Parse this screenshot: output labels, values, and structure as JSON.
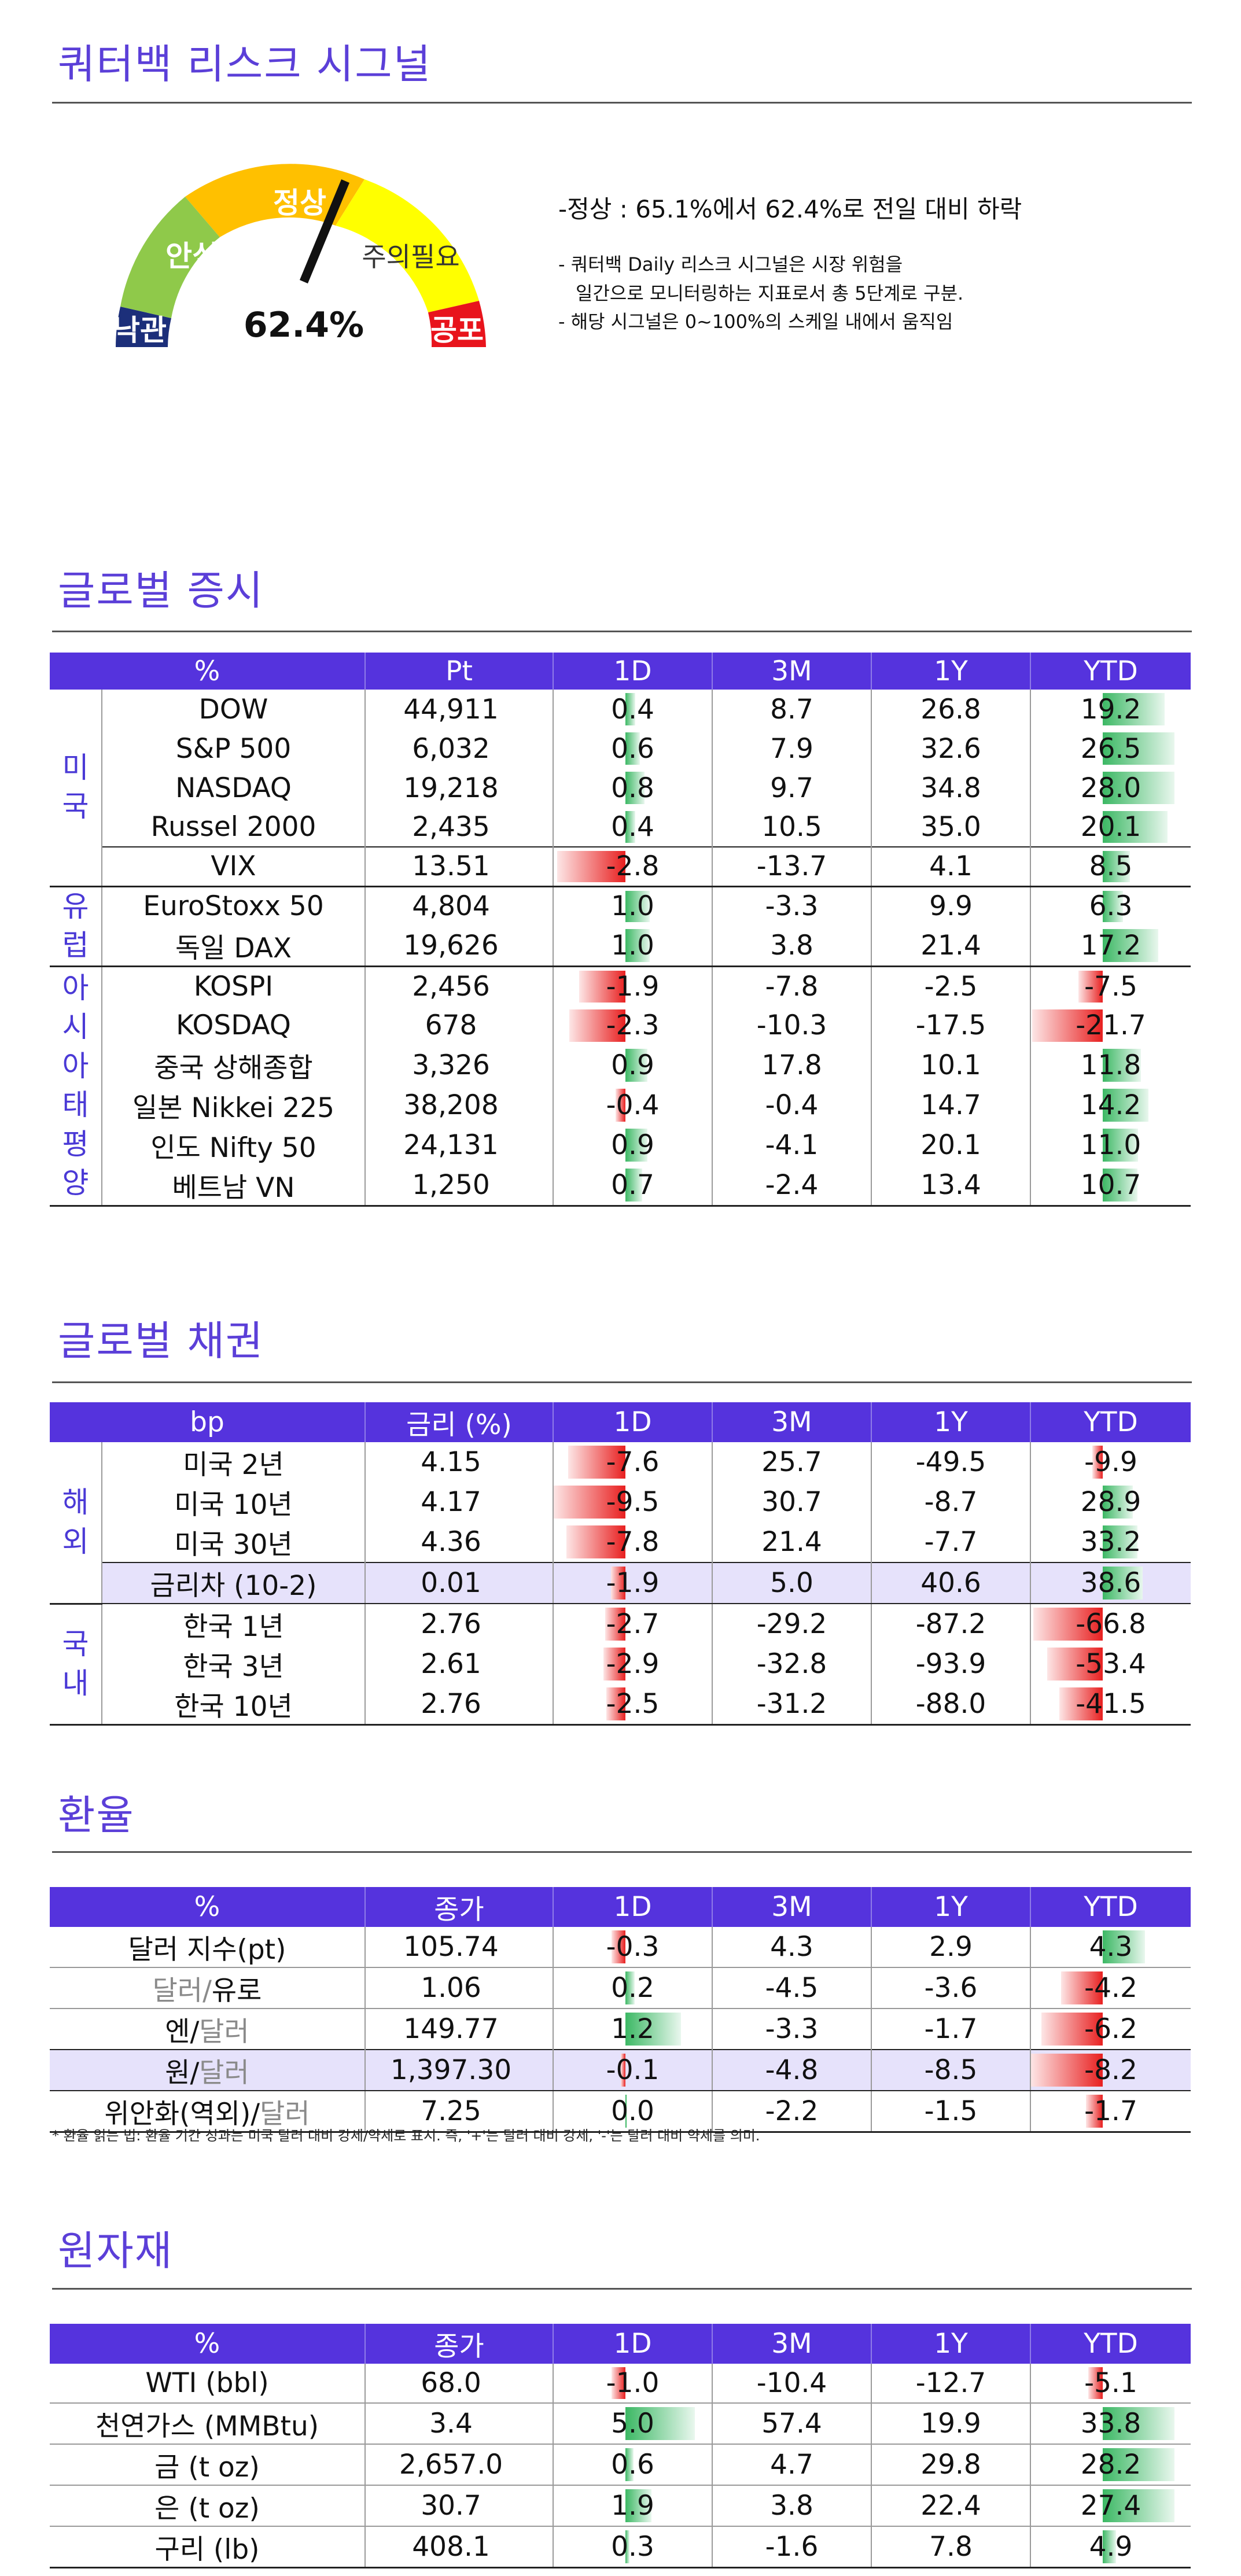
{
  "risk": {
    "title": "쿼터백 리스크 시그널",
    "levels": [
      "낙관",
      "안심",
      "정상",
      "주의필요",
      "공포"
    ],
    "value_text": "62.4%",
    "value": 62.4,
    "summary": "-정상 : 65.1%에서 62.4%로 전일 대비 하락",
    "note1": "- 쿼터백 Daily 리스크 시그널은 시장 위험을",
    "note2": "일간으로 모니터링하는 지표로서 총 5단계로 구분.",
    "note3": "- 해당 시그널은 0~100%의 스케일 내에서 움직임",
    "colors": {
      "optimism": "#1c2f7a",
      "relief": "#8fc94a",
      "normal": "#ffc000",
      "caution": "#ffff00",
      "fear": "#e8141c",
      "needle": "#111111"
    }
  },
  "equity": {
    "title": "글로벌 증시",
    "headers": [
      "%",
      "Pt",
      "1D",
      "3M",
      "1Y",
      "YTD"
    ],
    "groups": [
      {
        "region": "미\n국",
        "rows": [
          {
            "name": "DOW",
            "pt": "44,911",
            "d1": 0.4,
            "m3": "8.7",
            "y1": "26.8",
            "ytd": 19.2
          },
          {
            "name": "S&P 500",
            "pt": "6,032",
            "d1": 0.6,
            "m3": "7.9",
            "y1": "32.6",
            "ytd": 26.5
          },
          {
            "name": "NASDAQ",
            "pt": "19,218",
            "d1": 0.8,
            "m3": "9.7",
            "y1": "34.8",
            "ytd": 28.0
          },
          {
            "name": "Russel 2000",
            "pt": "2,435",
            "d1": 0.4,
            "m3": "10.5",
            "y1": "35.0",
            "ytd": 20.1
          },
          {
            "name": "VIX",
            "pt": "13.51",
            "d1": -2.8,
            "m3": "-13.7",
            "y1": "4.1",
            "ytd": 8.5
          }
        ]
      },
      {
        "region": "유\n럽",
        "rows": [
          {
            "name": "EuroStoxx 50",
            "pt": "4,804",
            "d1": 1.0,
            "m3": "-3.3",
            "y1": "9.9",
            "ytd": 6.3
          },
          {
            "name": "독일 DAX",
            "pt": "19,626",
            "d1": 1.0,
            "m3": "3.8",
            "y1": "21.4",
            "ytd": 17.2
          }
        ]
      },
      {
        "region": "아\n시\n아\n태\n평\n양",
        "rows": [
          {
            "name": "KOSPI",
            "pt": "2,456",
            "d1": -1.9,
            "m3": "-7.8",
            "y1": "-2.5",
            "ytd": -7.5
          },
          {
            "name": "KOSDAQ",
            "pt": "678",
            "d1": -2.3,
            "m3": "-10.3",
            "y1": "-17.5",
            "ytd": -21.7
          },
          {
            "name": "중국 상해종합",
            "pt": "3,326",
            "d1": 0.9,
            "m3": "17.8",
            "y1": "10.1",
            "ytd": 11.8
          },
          {
            "name": "일본 Nikkei 225",
            "pt": "38,208",
            "d1": -0.4,
            "m3": "-0.4",
            "y1": "14.7",
            "ytd": 14.2
          },
          {
            "name": "인도 Nifty 50",
            "pt": "24,131",
            "d1": 0.9,
            "m3": "-4.1",
            "y1": "20.1",
            "ytd": 11.0
          },
          {
            "name": "베트남 VN",
            "pt": "1,250",
            "d1": 0.7,
            "m3": "-2.4",
            "y1": "13.4",
            "ytd": 10.7
          }
        ]
      }
    ]
  },
  "bonds": {
    "title": "글로벌 채권",
    "headers": [
      "bp",
      "금리 (%)",
      "1D",
      "3M",
      "1Y",
      "YTD"
    ],
    "groups": [
      {
        "region": "해\n외",
        "rows": [
          {
            "name": "미국 2년",
            "pt": "4.15",
            "d1": -7.6,
            "m3": "25.7",
            "y1": "-49.5",
            "ytd": -9.9
          },
          {
            "name": "미국 10년",
            "pt": "4.17",
            "d1": -9.5,
            "m3": "30.7",
            "y1": "-8.7",
            "ytd": 28.9
          },
          {
            "name": "미국 30년",
            "pt": "4.36",
            "d1": -7.8,
            "m3": "21.4",
            "y1": "-7.7",
            "ytd": 33.2
          },
          {
            "name": "금리차 (10-2)",
            "pt": "0.01",
            "d1": -1.9,
            "m3": "5.0",
            "y1": "40.6",
            "ytd": 38.6,
            "highlight": true
          }
        ]
      },
      {
        "region": "국\n내",
        "rows": [
          {
            "name": "한국 1년",
            "pt": "2.76",
            "d1": -2.7,
            "m3": "-29.2",
            "y1": "-87.2",
            "ytd": -66.8
          },
          {
            "name": "한국 3년",
            "pt": "2.61",
            "d1": -2.9,
            "m3": "-32.8",
            "y1": "-93.9",
            "ytd": -53.4
          },
          {
            "name": "한국 10년",
            "pt": "2.76",
            "d1": -2.5,
            "m3": "-31.2",
            "y1": "-88.0",
            "ytd": -41.5
          }
        ]
      }
    ]
  },
  "fx": {
    "title": "환율",
    "headers": [
      "%",
      "종가",
      "1D",
      "3M",
      "1Y",
      "YTD"
    ],
    "rows": [
      {
        "name_a": "달러 지수(pt)",
        "name_b": "",
        "name_c": "",
        "pt": "105.74",
        "d1": -0.3,
        "m3": "4.3",
        "y1": "2.9",
        "ytd": 4.3
      },
      {
        "name_a": "",
        "name_b": "달러/",
        "name_c": "유로",
        "pt": "1.06",
        "d1": 0.2,
        "m3": "-4.5",
        "y1": "-3.6",
        "ytd": -4.2
      },
      {
        "name_a": "",
        "name_b": "엔/",
        "name_c": "달러",
        "pt": "149.77",
        "d1": 1.2,
        "m3": "-3.3",
        "y1": "-1.7",
        "ytd": -6.2,
        "grey_first": true
      },
      {
        "name_a": "",
        "name_b": "원/",
        "name_c": "달러",
        "pt": "1,397.30",
        "d1": -0.1,
        "m3": "-4.8",
        "y1": "-8.5",
        "ytd": -8.2,
        "highlight": true,
        "grey_first": true
      },
      {
        "name_a": "",
        "name_b": "위안화(역외)/",
        "name_c": "달러",
        "pt": "7.25",
        "d1": 0.0,
        "m3": "-2.2",
        "y1": "-1.5",
        "ytd": -1.7,
        "grey_first": true
      }
    ],
    "footnote": "* 환율 읽는 법: 환율 기간 성과는 미국 달러 대비 강세/약세로 표시. 즉, '+'는 달러 대비 강세, '-'는 달러 대비 약세를 의미."
  },
  "commodities": {
    "title": "원자재",
    "headers": [
      "%",
      "종가",
      "1D",
      "3M",
      "1Y",
      "YTD"
    ],
    "rows": [
      {
        "name": "WTI (bbl)",
        "pt": "68.0",
        "d1": -1.0,
        "m3": "-10.4",
        "y1": "-12.7",
        "ytd": -5.1
      },
      {
        "name": "천연가스 (MMBtu)",
        "pt": "3.4",
        "d1": 5.0,
        "m3": "57.4",
        "y1": "19.9",
        "ytd": 33.8
      },
      {
        "name": "금 (t oz)",
        "pt": "2,657.0",
        "d1": 0.6,
        "m3": "4.7",
        "y1": "29.8",
        "ytd": 28.2
      },
      {
        "name": "은 (t oz)",
        "pt": "30.7",
        "d1": 1.9,
        "m3": "3.8",
        "y1": "22.4",
        "ytd": 27.4
      },
      {
        "name": "구리 (lb)",
        "pt": "408.1",
        "d1": 0.3,
        "m3": "-1.6",
        "y1": "7.8",
        "ytd": 4.9
      }
    ]
  }
}
